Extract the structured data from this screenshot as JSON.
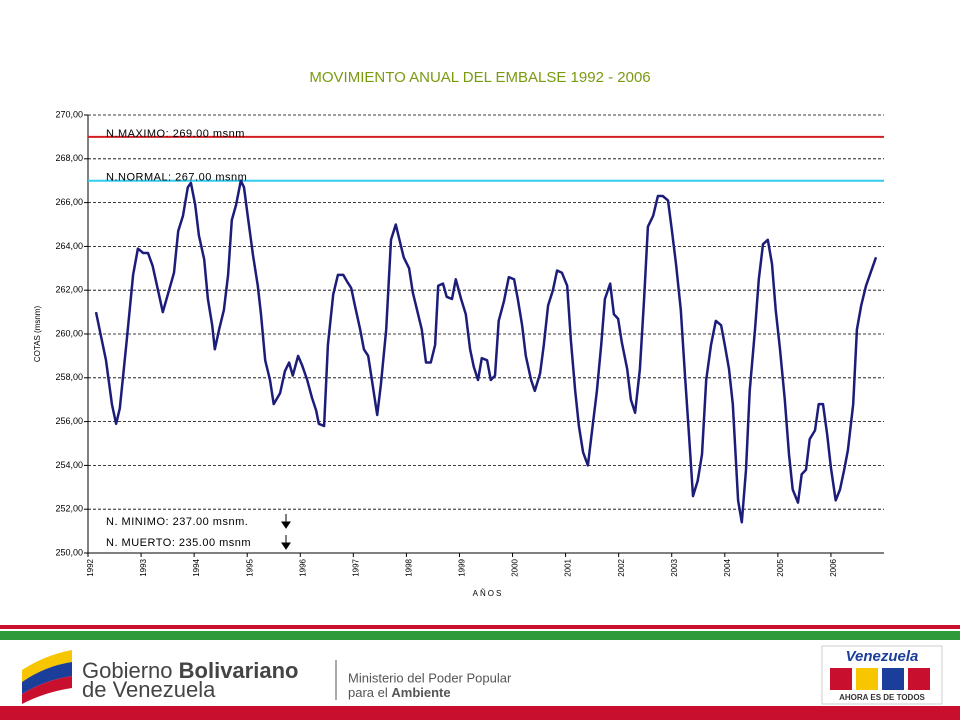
{
  "chart_data": {
    "type": "line",
    "title": "MOVIMIENTO ANUAL DEL EMBALSE 1992 - 2006",
    "ylabel": "COTAS (msnm)",
    "xlabel": "AÑOS",
    "xlim": [
      1992,
      2007
    ],
    "xticks": [
      1992,
      1993,
      1994,
      1995,
      1996,
      1997,
      1998,
      1999,
      2000,
      2001,
      2002,
      2003,
      2004,
      2005,
      2006
    ],
    "ylim": [
      250,
      270
    ],
    "yticks": [
      {
        "value": 250,
        "label": "250,00"
      },
      {
        "value": 252,
        "label": "252,00"
      },
      {
        "value": 254,
        "label": "254,00"
      },
      {
        "value": 256,
        "label": "256,00"
      },
      {
        "value": 258,
        "label": "258,00"
      },
      {
        "value": 260,
        "label": "260,00"
      },
      {
        "value": 262,
        "label": "262,00"
      },
      {
        "value": 264,
        "label": "264,00"
      },
      {
        "value": 266,
        "label": "266,00"
      },
      {
        "value": 268,
        "label": "268,00"
      },
      {
        "value": 270,
        "label": "270,00"
      }
    ],
    "grid": true,
    "reference_lines": [
      {
        "value": 269,
        "label": "N.MAXIMO: 269.00  msnm",
        "color": "#d21f1f"
      },
      {
        "value": 267,
        "label": "N.NORMAL: 267.00 msnm",
        "color": "#33ccee"
      }
    ],
    "annotations": [
      "N. MINIMO: 237.00 msnm.",
      "N. MUERTO: 235.00 msnm"
    ],
    "series": [
      {
        "color": "#1c1c7a",
        "x": [
          1992.15,
          1992.34,
          1992.45,
          1992.53,
          1992.6,
          1992.73,
          1992.85,
          1992.94,
          1993.04,
          1993.13,
          1993.22,
          1993.32,
          1993.41,
          1993.55,
          1993.62,
          1993.7,
          1993.79,
          1993.88,
          1993.94,
          1994.02,
          1994.09,
          1994.19,
          1994.26,
          1994.34,
          1994.39,
          1994.47,
          1994.56,
          1994.64,
          1994.71,
          1994.79,
          1994.88,
          1994.94,
          1995.01,
          1995.11,
          1995.2,
          1995.26,
          1995.34,
          1995.43,
          1995.5,
          1995.62,
          1995.71,
          1995.79,
          1995.86,
          1995.96,
          1996.03,
          1996.13,
          1996.22,
          1996.3,
          1996.35,
          1996.45,
          1996.52,
          1996.62,
          1996.71,
          1996.81,
          1996.88,
          1996.96,
          1997.03,
          1997.13,
          1997.2,
          1997.28,
          1997.35,
          1997.45,
          1997.52,
          1997.62,
          1997.71,
          1997.8,
          1997.88,
          1997.95,
          1998.05,
          1998.12,
          1998.22,
          1998.29,
          1998.37,
          1998.46,
          1998.54,
          1998.6,
          1998.69,
          1998.76,
          1998.86,
          1998.93,
          1999.03,
          1999.12,
          1999.2,
          1999.27,
          1999.35,
          1999.42,
          1999.52,
          1999.59,
          1999.67,
          1999.74,
          1999.84,
          1999.93,
          2000.03,
          2000.1,
          2000.18,
          2000.25,
          2000.35,
          2000.42,
          2000.52,
          2000.59,
          2000.67,
          2000.76,
          2000.84,
          2000.93,
          2001.03,
          2001.1,
          2001.18,
          2001.25,
          2001.33,
          2001.42,
          2001.5,
          2001.59,
          2001.67,
          2001.74,
          2001.84,
          2001.91,
          2001.99,
          2002.06,
          2002.16,
          2002.23,
          2002.31,
          2002.4,
          2002.48,
          2002.55,
          2002.65,
          2002.74,
          2002.83,
          2002.93,
          2003.0,
          2003.08,
          2003.17,
          2003.25,
          2003.32,
          2003.4,
          2003.49,
          2003.57,
          2003.65,
          2003.74,
          2003.83,
          2003.93,
          2004.0,
          2004.08,
          2004.15,
          2004.25,
          2004.32,
          2004.4,
          2004.47,
          2004.57,
          2004.64,
          2004.72,
          2004.81,
          2004.89,
          2004.96,
          2005.04,
          2005.13,
          2005.21,
          2005.28,
          2005.38,
          2005.45,
          2005.53,
          2005.6,
          2005.7,
          2005.77,
          2005.85,
          2005.93,
          2006.0,
          2006.09,
          2006.17,
          2006.25,
          2006.32,
          2006.42,
          2006.49,
          2006.57,
          2006.66,
          2006.85
        ],
        "values": [
          261.0,
          258.8,
          256.8,
          255.9,
          256.6,
          259.7,
          262.7,
          263.9,
          263.7,
          263.7,
          263.1,
          262.0,
          261.0,
          262.2,
          262.8,
          264.7,
          265.4,
          266.7,
          266.9,
          265.9,
          264.5,
          263.4,
          261.6,
          260.4,
          259.3,
          260.2,
          261.1,
          262.7,
          265.2,
          265.9,
          267.0,
          266.7,
          265.4,
          263.6,
          262.2,
          260.9,
          258.8,
          257.9,
          256.8,
          257.3,
          258.3,
          258.7,
          258.1,
          259.0,
          258.6,
          257.9,
          257.1,
          256.5,
          255.9,
          255.8,
          259.5,
          261.8,
          262.7,
          262.7,
          262.4,
          262.1,
          261.3,
          260.2,
          259.3,
          259.0,
          257.9,
          256.3,
          257.7,
          260.2,
          264.3,
          265.0,
          264.2,
          263.5,
          263.0,
          261.9,
          260.9,
          260.2,
          258.7,
          258.7,
          259.5,
          262.2,
          262.3,
          261.7,
          261.6,
          262.5,
          261.6,
          260.9,
          259.3,
          258.5,
          257.9,
          258.9,
          258.8,
          257.9,
          258.1,
          260.6,
          261.5,
          262.6,
          262.5,
          261.6,
          260.4,
          259.0,
          257.9,
          257.4,
          258.2,
          259.5,
          261.3,
          262.0,
          262.9,
          262.8,
          262.2,
          259.7,
          257.4,
          255.8,
          254.6,
          254.0,
          255.6,
          257.4,
          259.5,
          261.6,
          262.3,
          260.9,
          260.7,
          259.6,
          258.4,
          257.0,
          256.4,
          258.4,
          261.6,
          264.9,
          265.4,
          266.3,
          266.3,
          266.1,
          264.8,
          263.2,
          261.1,
          258.1,
          255.6,
          252.6,
          253.3,
          254.5,
          257.9,
          259.5,
          260.6,
          260.4,
          259.5,
          258.4,
          256.8,
          252.4,
          251.4,
          253.8,
          257.4,
          260.2,
          262.5,
          264.1,
          264.3,
          263.2,
          261.1,
          259.3,
          257.0,
          254.5,
          252.9,
          252.3,
          253.6,
          253.8,
          255.2,
          255.6,
          256.8,
          256.8,
          255.4,
          253.9,
          252.4,
          252.9,
          253.8,
          254.7,
          256.8,
          260.2,
          261.3,
          262.2,
          263.5
        ]
      }
    ]
  },
  "footer": {
    "gobierno_line1": "Gobierno",
    "gobierno_bold": "Bolivariano",
    "gobierno_line2": "de Venezuela",
    "ministerio_line1": "Ministerio del Poder Popular",
    "ministerio_line2a": "para el",
    "ministerio_line2b": "Ambiente",
    "brand": "Venezuela",
    "slogan": "AHORA ES DE TODOS"
  }
}
